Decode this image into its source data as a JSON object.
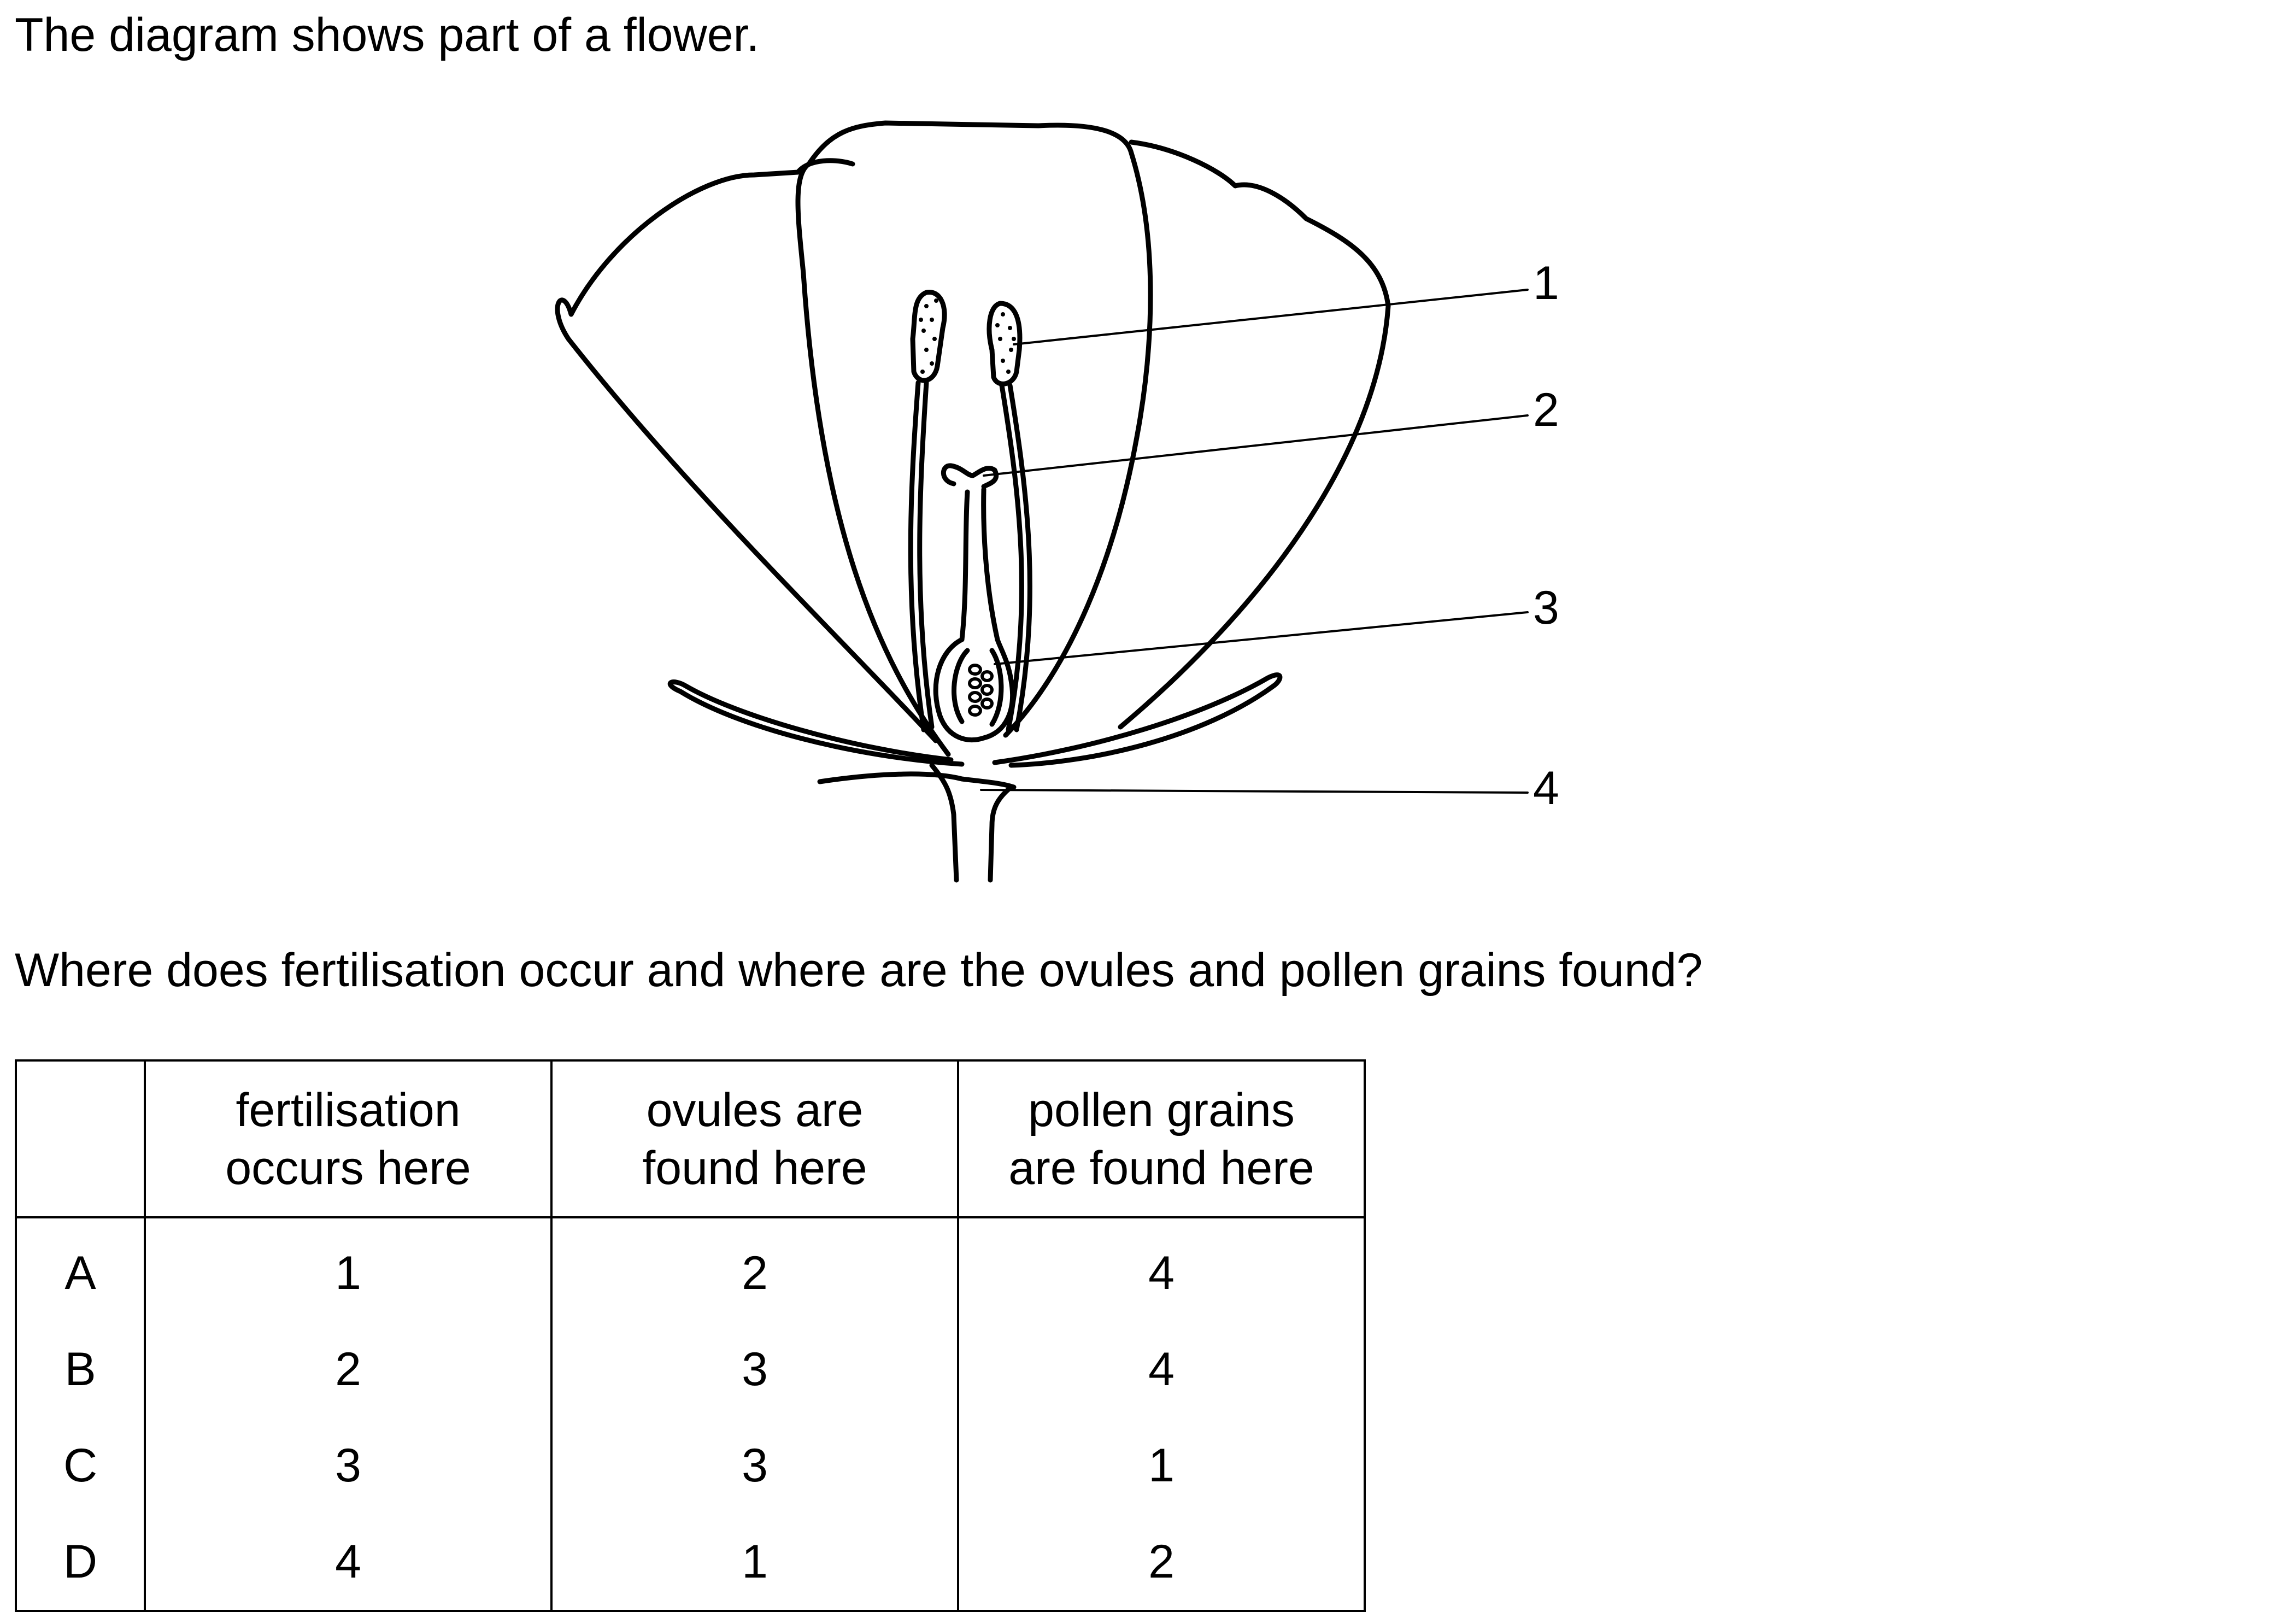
{
  "intro_text": "The diagram shows part of a flower.",
  "diagram": {
    "labels": [
      "1",
      "2",
      "3",
      "4"
    ]
  },
  "question_text": "Where does fertilisation occur and where are the ovules and pollen grains found?",
  "table": {
    "headers": [
      [
        "",
        ""
      ],
      [
        "fertilisation",
        "occurs here"
      ],
      [
        "ovules are",
        "found here"
      ],
      [
        "pollen grains",
        "are found here"
      ]
    ],
    "rows": [
      {
        "letter": "A",
        "values": [
          "1",
          "2",
          "4"
        ]
      },
      {
        "letter": "B",
        "values": [
          "2",
          "3",
          "4"
        ]
      },
      {
        "letter": "C",
        "values": [
          "3",
          "3",
          "1"
        ]
      },
      {
        "letter": "D",
        "values": [
          "4",
          "1",
          "2"
        ]
      }
    ]
  }
}
